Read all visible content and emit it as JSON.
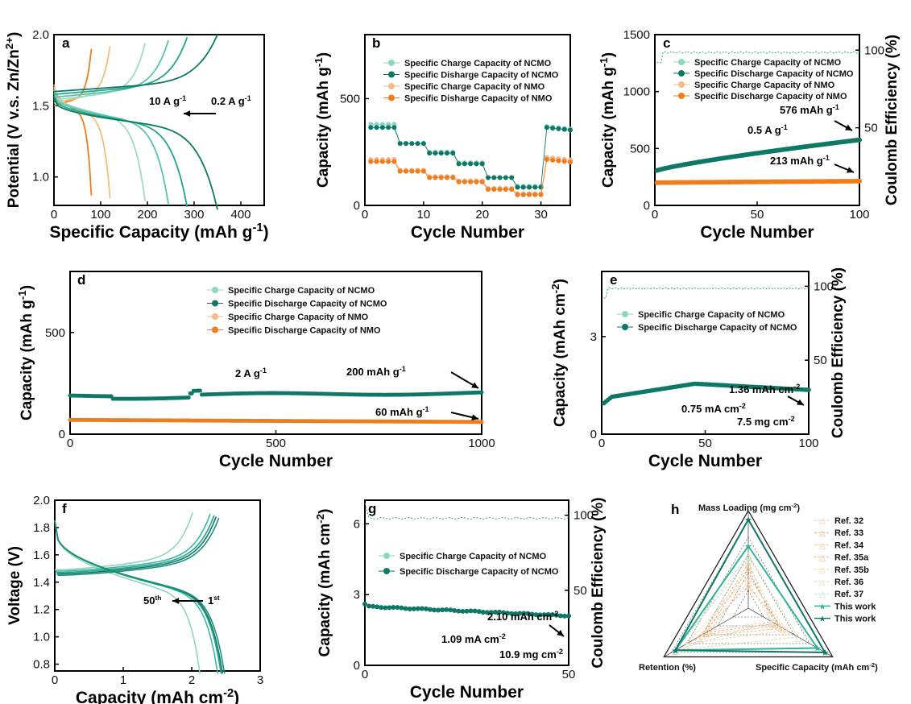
{
  "colors": {
    "ncmo_charge": "#8fd6c2",
    "ncmo_discharge": "#0d7865",
    "nmo_charge": "#f6b98a",
    "nmo_discharge": "#f07d1c",
    "gc_palette": [
      "#f07d1c",
      "#f6a35a",
      "#f4be7a",
      "#9edbc6",
      "#55c4ab",
      "#20a68c",
      "#0d7865"
    ],
    "ce": "#2aa58d"
  },
  "panels": {
    "a": {
      "label": "a",
      "xlabel": "Specific Capacity (mAh g⁻¹)",
      "ylabel": "Potential (V v.s. Zn/Zn²⁺)",
      "xticks": [
        "0",
        "100",
        "200",
        "300",
        "400"
      ],
      "yticks": [
        "1.0",
        "1.5",
        "2.0"
      ],
      "ann_left": "10 A g⁻¹",
      "ann_right": "0.2 A g⁻¹"
    },
    "b": {
      "label": "b",
      "xlabel": "Cycle Number",
      "ylabel": "Capacity (mAh g⁻¹)",
      "xticks": [
        "0",
        "10",
        "20",
        "30"
      ],
      "yticks": [
        "0",
        "500"
      ],
      "legend": [
        "Specific Charge Capacity of NCMO",
        "Specific Disharge Capacity of NCMO",
        "Specific Charge Capacity of NMO",
        "Specific Disharge Capacity of NMO"
      ]
    },
    "c": {
      "label": "c",
      "xlabel": "Cycle Number",
      "ylabel": "Capacity (mAh g⁻¹)",
      "ylabel2": "Coulomb Efficiency (%)",
      "xticks": [
        "0",
        "50",
        "100"
      ],
      "yticks": [
        "0",
        "500",
        "1000",
        "1500"
      ],
      "y2ticks": [
        "50",
        "100"
      ],
      "legend": [
        "Specific Charge Capacity of NCMO",
        "Specific Discharge Capacity of NCMO",
        "Specific Charge Capacity of NMO",
        "Specific Discharge Capacity of NMO"
      ],
      "ann_rate": "0.5 A g⁻¹",
      "ann_ncmo": "576 mAh g⁻¹",
      "ann_nmo": "213 mAh g⁻¹"
    },
    "d": {
      "label": "d",
      "xlabel": "Cycle Number",
      "ylabel": "Capacity (mAh g⁻¹)",
      "xticks": [
        "0",
        "500",
        "1000"
      ],
      "yticks": [
        "0",
        "500"
      ],
      "legend": [
        "Specific Charge Capacity of NCMO",
        "Specific Discharge Capacity of NCMO",
        "Specific Charge Capacity of NMO",
        "Specific Discharge Capacity of NMO"
      ],
      "ann_rate": "2 A g⁻¹",
      "ann_ncmo": "200 mAh g⁻¹",
      "ann_nmo": "60 mAh g⁻¹"
    },
    "e": {
      "label": "e",
      "xlabel": "Cycle Number",
      "ylabel": "Capacity (mAh cm⁻²)",
      "ylabel2": "Coulomb Efficiency (%)",
      "xticks": [
        "0",
        "50",
        "100"
      ],
      "yticks": [
        "0",
        "3"
      ],
      "y2ticks": [
        "50",
        "100"
      ],
      "legend": [
        "Specific Charge Capacity of NCMO",
        "Specific Discharge Capacity of NCMO"
      ],
      "ann_cap": "1.36 mAh cm⁻²",
      "ann_rate": "0.75 mA cm⁻²",
      "ann_load": "7.5 mg cm⁻²"
    },
    "f": {
      "label": "f",
      "xlabel": "Capacity (mAh cm⁻²)",
      "ylabel": "Voltage (V)",
      "xticks": [
        "0",
        "1",
        "2",
        "3"
      ],
      "yticks": [
        "0.8",
        "1.0",
        "1.2",
        "1.4",
        "1.6",
        "1.8",
        "2.0"
      ],
      "ann_left": "50th",
      "ann_right": "1st"
    },
    "g": {
      "label": "g",
      "xlabel": "Cycle Number",
      "ylabel": "Capacity (mAh cm⁻²)",
      "ylabel2": "Coulomb Efficiency (%)",
      "xticks": [
        "0",
        "50"
      ],
      "yticks": [
        "0",
        "3",
        "6"
      ],
      "y2ticks": [
        "50",
        "100"
      ],
      "legend": [
        "Specific Charge Capacity of NCMO",
        "Specific Discharge Capacity of NCMO"
      ],
      "ann_cap": "2.10 mAh cm⁻²",
      "ann_rate": "1.09 mA cm⁻²",
      "ann_load": "10.9 mg cm⁻²"
    },
    "h": {
      "label": "h",
      "axis_top": "Mass Loading (mg cm⁻²)",
      "axis_left": "Retention (%)",
      "axis_right": "Specific Capacity (mAh cm⁻²)",
      "legend": [
        "Ref. 32",
        "Ref. 33",
        "Ref. 34",
        "Ref. 35a",
        "Ref. 35b",
        "Ref. 36",
        "Ref. 37",
        "This work",
        "This work"
      ]
    }
  },
  "chart_data": [
    {
      "type": "line",
      "panel": "a",
      "xlabel": "Specific Capacity (mAh g⁻¹)",
      "ylabel": "Potential (V v.s. Zn/Zn²⁺)",
      "xlim": [
        0,
        450
      ],
      "ylim": [
        0.8,
        2.0
      ],
      "series": [
        {
          "end_capacity": 80
        },
        {
          "end_capacity": 120
        },
        {
          "end_capacity": 195
        },
        {
          "end_capacity": 245
        },
        {
          "end_capacity": 285
        },
        {
          "end_capacity": 350
        }
      ]
    },
    {
      "type": "scatter",
      "panel": "b",
      "xlim": [
        0,
        35
      ],
      "ylim": [
        0,
        800
      ],
      "series": [
        {
          "name": "Specific Charge Capacity of NCMO",
          "steps": [
            [
              1,
              380
            ],
            [
              6,
              290
            ],
            [
              11,
              250
            ],
            [
              16,
              200
            ],
            [
              21,
              130
            ],
            [
              26,
              90
            ],
            [
              31,
              370
            ]
          ]
        },
        {
          "name": "Specific Disharge Capacity of NCMO",
          "steps": [
            [
              1,
              365
            ],
            [
              6,
              290
            ],
            [
              11,
              245
            ],
            [
              16,
              195
            ],
            [
              21,
              130
            ],
            [
              26,
              85
            ],
            [
              31,
              365
            ]
          ]
        },
        {
          "name": "Specific Charge Capacity of NMO",
          "steps": [
            [
              1,
              215
            ],
            [
              6,
              165
            ],
            [
              11,
              135
            ],
            [
              16,
              115
            ],
            [
              21,
              80
            ],
            [
              26,
              55
            ],
            [
              31,
              225
            ]
          ]
        },
        {
          "name": "Specific Disharge Capacity of NMO",
          "steps": [
            [
              1,
              205
            ],
            [
              6,
              160
            ],
            [
              11,
              130
            ],
            [
              16,
              110
            ],
            [
              21,
              75
            ],
            [
              26,
              50
            ],
            [
              31,
              215
            ]
          ]
        }
      ]
    },
    {
      "type": "scatter",
      "panel": "c",
      "xlim": [
        0,
        100
      ],
      "ylim": [
        0,
        1500
      ],
      "y2lim": [
        0,
        110
      ],
      "series": [
        {
          "name": "Specific Discharge Capacity of NCMO",
          "start": 300,
          "end": 576
        },
        {
          "name": "Specific Discharge Capacity of NMO",
          "start": 200,
          "end": 213
        },
        {
          "name": "Coulomb Efficiency",
          "value": 99
        }
      ]
    },
    {
      "type": "scatter",
      "panel": "d",
      "xlim": [
        0,
        1000
      ],
      "ylim": [
        0,
        800
      ],
      "series": [
        {
          "name": "Specific Discharge Capacity of NCMO",
          "start": 190,
          "end": 200
        },
        {
          "name": "Specific Discharge Capacity of NMO",
          "start": 70,
          "end": 60
        }
      ]
    },
    {
      "type": "scatter",
      "panel": "e",
      "xlim": [
        0,
        100
      ],
      "ylim": [
        0,
        5
      ],
      "y2lim": [
        0,
        110
      ],
      "series": [
        {
          "name": "Specific Discharge Capacity of NCMO",
          "start": 0.9,
          "peak": 1.55,
          "end": 1.36
        },
        {
          "name": "Coulomb Efficiency",
          "value": 99
        }
      ]
    },
    {
      "type": "line",
      "panel": "f",
      "xlim": [
        0,
        3
      ],
      "ylim": [
        0.75,
        2.0
      ],
      "series": [
        {
          "cycle": "1st",
          "end_capacity": 2.45
        },
        {
          "cycle": "50th",
          "end_capacity": 2.12
        }
      ]
    },
    {
      "type": "scatter",
      "panel": "g",
      "xlim": [
        0,
        50
      ],
      "ylim": [
        0,
        7
      ],
      "y2lim": [
        0,
        110
      ],
      "series": [
        {
          "name": "Specific Discharge Capacity of NCMO",
          "start": 2.6,
          "end": 2.1
        },
        {
          "name": "Coulomb Efficiency",
          "value": 99
        }
      ]
    },
    {
      "type": "radar",
      "panel": "h",
      "axes": [
        "Mass Loading (mg cm⁻²)",
        "Specific Capacity (mAh cm⁻²)",
        "Retention (%)"
      ],
      "series": [
        {
          "name": "Ref. 32",
          "values": [
            0.3,
            0.3,
            0.5
          ]
        },
        {
          "name": "Ref. 33",
          "values": [
            0.45,
            0.35,
            0.55
          ]
        },
        {
          "name": "Ref. 34",
          "values": [
            0.5,
            0.4,
            0.6
          ]
        },
        {
          "name": "Ref. 35a",
          "values": [
            0.25,
            0.45,
            0.65
          ]
        },
        {
          "name": "Ref. 35b",
          "values": [
            0.35,
            0.5,
            0.8
          ]
        },
        {
          "name": "Ref. 36",
          "values": [
            0.6,
            0.65,
            0.95
          ]
        },
        {
          "name": "Ref. 37",
          "values": [
            0.55,
            0.3,
            0.95
          ]
        },
        {
          "name": "This work",
          "values": [
            0.7,
            0.9,
            0.95
          ]
        },
        {
          "name": "This work",
          "values": [
            1.0,
            1.0,
            0.95
          ]
        }
      ]
    }
  ]
}
